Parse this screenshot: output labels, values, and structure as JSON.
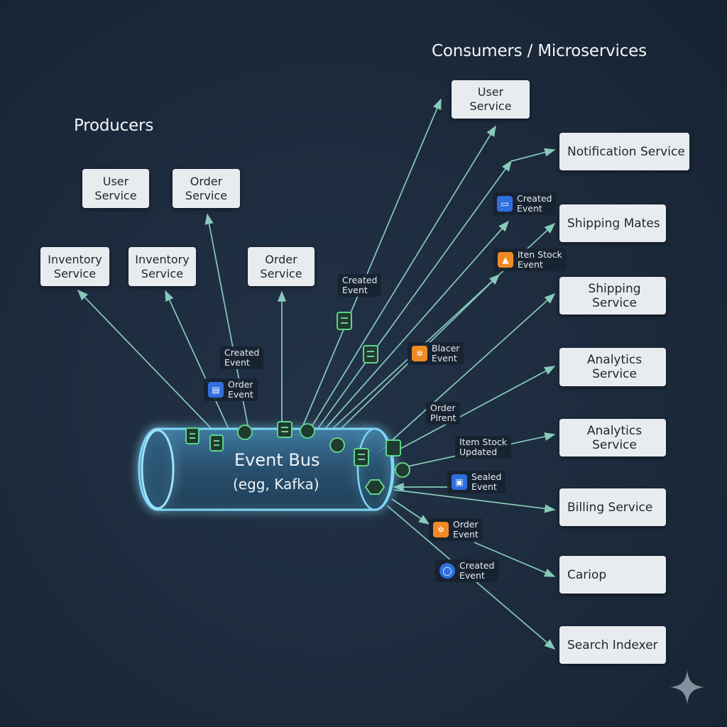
{
  "headings": {
    "producers": "Producers",
    "consumers": "Consumers / Microservices"
  },
  "event_bus": {
    "title": "Event Bus",
    "subtitle": "(egg, Kafka)"
  },
  "producers": {
    "user_service": "User\nService",
    "order_service_top": "Order\nService",
    "inventory_service_a": "Inventory\nService",
    "inventory_service_b": "Inventory\nService",
    "order_service_mid": "Order\nService"
  },
  "consumers": {
    "user_service": "User\nService",
    "notification_service": "Notification Service",
    "shipping_mates": "Shipping Mates",
    "shipping_service": "Shipping Service",
    "analytics_service_a": "Analytics Service",
    "analytics_service_b": "Analytics Service",
    "billing_service": "Billing Service",
    "cariop": "Cariop",
    "search_indexer": "Search Indexer"
  },
  "event_labels": {
    "created_event_mid": "Created\nEvent",
    "order_event_left": "Order\nEvent",
    "created_event_upper": "Created\nEvent",
    "created_event_right": "Created\nEvent",
    "item_stock_event": "Iten Stock\nEvent",
    "blacer_event": "Blacer\nEvent",
    "order_plrent": "Order\nPlrent",
    "item_stock_updated": "Item Stock\nUpdated",
    "sealed_event": "Sealed\nEvent",
    "order_event_lower": "Order\nEvent",
    "created_event_lower": "Created\nEvent"
  },
  "colors": {
    "background": "#1c2a3c",
    "arrow": "#8fd8c4",
    "bus_glow": "#4fc3f7",
    "node_fill": "#e9ecef",
    "event_icon": "#5fd38a",
    "badge_blue": "#2f6fde",
    "badge_orange": "#f08a24"
  },
  "icons": {
    "blue_monitor": "monitor-icon",
    "orange_box": "package-icon",
    "orange_cog": "cog-icon",
    "blue_card": "card-icon",
    "blue_ring": "ring-icon",
    "green_token": "event-token-icon",
    "sparkle": "sparkle-icon"
  }
}
